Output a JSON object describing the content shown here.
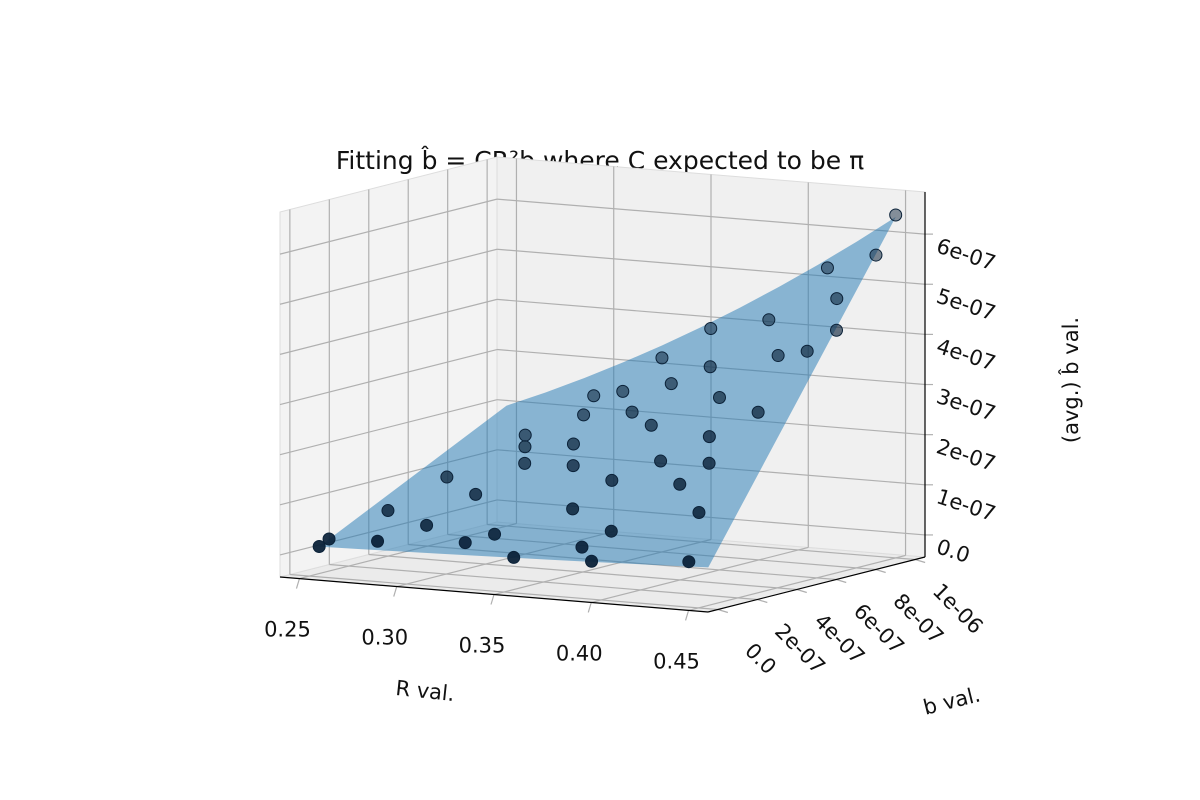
{
  "chart_data": {
    "type": "scatter3d",
    "title": "Fitting b̂ = CR²b where C expected to be π",
    "xlabel": "R val.",
    "ylabel": "b val.",
    "zlabel": "(avg.) b̂ val.",
    "xlim": [
      0.24,
      0.46
    ],
    "ylim": [
      -5e-08,
      1.05e-06
    ],
    "zlim": [
      -4.4e-08,
      6.84e-07
    ],
    "xticks": [
      {
        "value": 0.25,
        "label": "0.25"
      },
      {
        "value": 0.3,
        "label": "0.30"
      },
      {
        "value": 0.35,
        "label": "0.35"
      },
      {
        "value": 0.4,
        "label": "0.40"
      },
      {
        "value": 0.45,
        "label": "0.45"
      }
    ],
    "yticks": [
      {
        "value": 0,
        "label": "0.0"
      },
      {
        "value": 2e-07,
        "label": "2e-07"
      },
      {
        "value": 4e-07,
        "label": "4e-07"
      },
      {
        "value": 6e-07,
        "label": "6e-07"
      },
      {
        "value": 8e-07,
        "label": "8e-07"
      },
      {
        "value": 1e-06,
        "label": "1e-06"
      }
    ],
    "zticks": [
      {
        "value": 0,
        "label": "0.0"
      },
      {
        "value": 1e-07,
        "label": "1e-07"
      },
      {
        "value": 2e-07,
        "label": "2e-07"
      },
      {
        "value": 3e-07,
        "label": "3e-07"
      },
      {
        "value": 4e-07,
        "label": "4e-07"
      },
      {
        "value": 5e-07,
        "label": "5e-07"
      },
      {
        "value": 6e-07,
        "label": "6e-07"
      }
    ],
    "grid": true,
    "surface": {
      "C": 3.14,
      "color": "#1f77b4"
    },
    "series": [
      {
        "color": "#0b2239",
        "x": [
          0.25,
          0.26,
          0.25,
          0.28,
          0.29,
          0.3,
          0.31,
          0.3,
          0.32,
          0.33,
          0.33,
          0.34,
          0.35,
          0.34,
          0.36,
          0.37,
          0.36,
          0.38,
          0.38,
          0.39,
          0.4,
          0.39,
          0.4,
          0.41,
          0.42,
          0.42,
          0.43,
          0.43,
          0.44,
          0.45,
          0.45,
          0.44,
          0.41,
          0.37,
          0.35,
          0.32,
          0.29,
          0.27,
          0.31,
          0.33,
          0.36,
          0.39,
          0.42,
          0.44,
          0.45
        ],
        "y": [
          1e-07,
          3e-07,
          5e-08,
          5e-08,
          2e-07,
          3.5e-07,
          5e-07,
          6e-07,
          7e-07,
          8e-07,
          1.5e-07,
          4.5e-07,
          6.5e-07,
          9e-07,
          2.5e-07,
          5.5e-07,
          9.5e-07,
          1e-07,
          7.5e-07,
          4e-07,
          8.5e-07,
          5e-08,
          6e-07,
          3e-07,
          7e-07,
          9.5e-07,
          2e-07,
          5e-07,
          8e-07,
          9e-07,
          1e-06,
          6.5e-07,
          4.5e-07,
          3.5e-07,
          5e-08,
          1e-07,
          7e-07,
          5e-07,
          8.5e-07,
          5.5e-07,
          7.5e-07,
          1.5e-07,
          3.5e-07,
          5e-08,
          7e-07
        ],
        "z": [
          2e-08,
          6e-08,
          1e-08,
          3e-08,
          5e-08,
          1e-07,
          1.5e-07,
          1.7e-07,
          2.3e-07,
          2.7e-07,
          5e-08,
          1.6e-07,
          2.5e-07,
          3.3e-07,
          1e-07,
          2.4e-07,
          3.9e-07,
          4.5e-08,
          3.4e-07,
          1.9e-07,
          4.3e-07,
          2.5e-08,
          3e-07,
          1.6e-07,
          3.8e-07,
          5.3e-07,
          1.2e-07,
          2.9e-07,
          4.9e-07,
          5.7e-07,
          6.4e-07,
          4e-07,
          2.4e-07,
          1.5e-07,
          2e-08,
          3.5e-08,
          1.8e-07,
          1.1e-07,
          2.5e-07,
          1.9e-07,
          3e-07,
          7.5e-08,
          2e-07,
          4e-08,
          4.4e-07
        ]
      }
    ]
  }
}
